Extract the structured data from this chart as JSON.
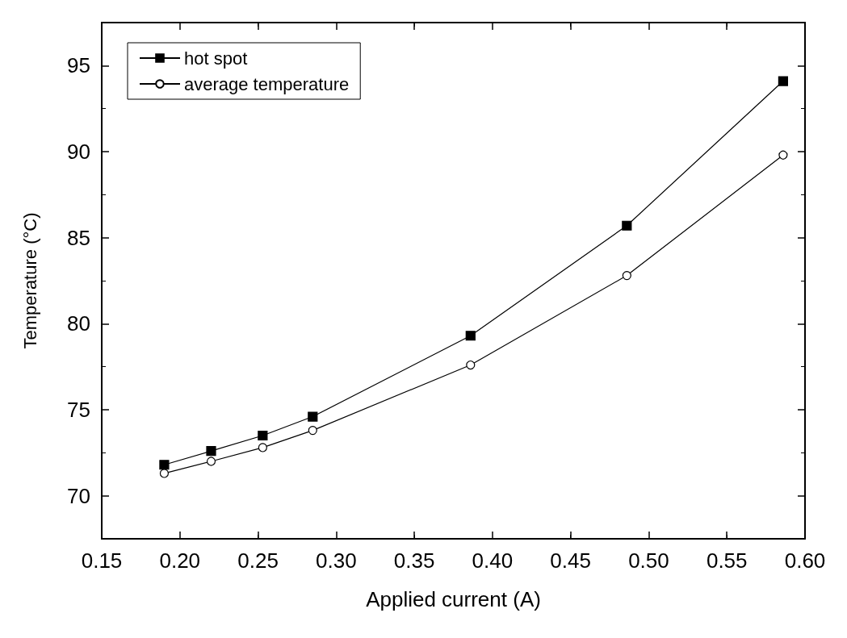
{
  "chart_data": {
    "type": "line",
    "xlabel": "Applied current (A)",
    "ylabel": "Temperature (°C)",
    "x": [
      0.19,
      0.22,
      0.253,
      0.285,
      0.386,
      0.486,
      0.586
    ],
    "series": [
      {
        "name": "hot spot",
        "color": "#000000",
        "marker": "square",
        "values": [
          71.8,
          72.6,
          73.5,
          74.6,
          79.3,
          85.7,
          94.1
        ]
      },
      {
        "name": "average temperature",
        "color": "#000000",
        "marker": "circle",
        "values": [
          71.3,
          72.0,
          72.8,
          73.8,
          77.6,
          82.8,
          89.8
        ]
      }
    ],
    "xlim": [
      0.15,
      0.6
    ],
    "xticks": [
      0.15,
      {
        "value": 0.2,
        "label": "0.20"
      },
      0.25,
      {
        "value": 0.3,
        "label": "0.30"
      },
      0.35,
      {
        "value": 0.4,
        "label": "0.40"
      },
      0.45,
      {
        "value": 0.5,
        "label": "0.50"
      },
      0.55,
      {
        "value": 0.6,
        "label": "0.60"
      }
    ],
    "ylim": [
      67.5,
      97.5
    ],
    "yticks": [
      70,
      75,
      80,
      85,
      90,
      95
    ],
    "grid": false,
    "legend": "top left",
    "line_style": "solid"
  }
}
